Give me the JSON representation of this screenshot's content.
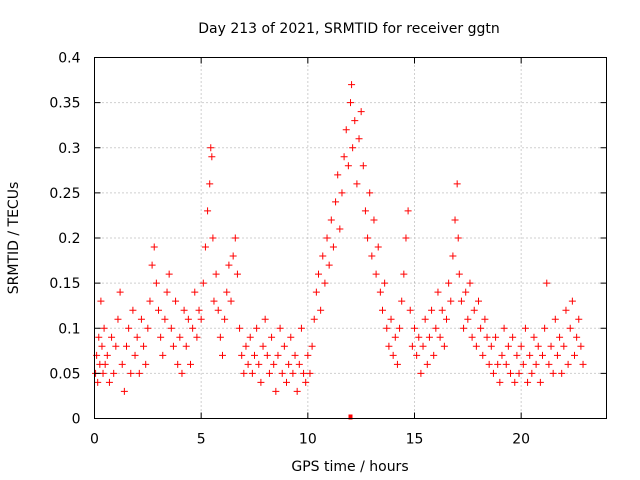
{
  "chart_data": {
    "type": "scatter",
    "title": "Day 213 of 2021, SRMTID for receiver ggtn",
    "xlabel": "GPS time / hours",
    "ylabel": "SRMTID / TECUs",
    "xlim": [
      0,
      24
    ],
    "ylim": [
      0,
      0.4
    ],
    "xticks": [
      0,
      5,
      10,
      15,
      20
    ],
    "xtick_labels": [
      "0",
      "5",
      "10",
      "15",
      "20"
    ],
    "yticks": [
      0,
      0.05,
      0.1,
      0.15,
      0.2,
      0.25,
      0.3,
      0.35,
      0.4
    ],
    "ytick_labels": [
      "0",
      "0.05",
      "0.1",
      "0.15",
      "0.2",
      "0.25",
      "0.3",
      "0.35",
      "0.4"
    ],
    "grid": true,
    "marker": "+",
    "color": "#ff0000",
    "series": [
      {
        "name": "SRMTID",
        "points": [
          [
            0.05,
            0.05
          ],
          [
            0.1,
            0.07
          ],
          [
            0.15,
            0.04
          ],
          [
            0.2,
            0.09
          ],
          [
            0.25,
            0.06
          ],
          [
            0.3,
            0.13
          ],
          [
            0.35,
            0.08
          ],
          [
            0.4,
            0.05
          ],
          [
            0.45,
            0.1
          ],
          [
            0.5,
            0.06
          ],
          [
            0.6,
            0.07
          ],
          [
            0.7,
            0.04
          ],
          [
            0.8,
            0.09
          ],
          [
            0.9,
            0.05
          ],
          [
            1.0,
            0.08
          ],
          [
            1.1,
            0.11
          ],
          [
            1.2,
            0.14
          ],
          [
            1.3,
            0.06
          ],
          [
            1.4,
            0.03
          ],
          [
            1.5,
            0.08
          ],
          [
            1.6,
            0.1
          ],
          [
            1.7,
            0.05
          ],
          [
            1.8,
            0.12
          ],
          [
            1.9,
            0.07
          ],
          [
            2.0,
            0.09
          ],
          [
            2.1,
            0.05
          ],
          [
            2.2,
            0.11
          ],
          [
            2.3,
            0.08
          ],
          [
            2.4,
            0.06
          ],
          [
            2.5,
            0.1
          ],
          [
            2.6,
            0.13
          ],
          [
            2.7,
            0.17
          ],
          [
            2.8,
            0.19
          ],
          [
            2.9,
            0.15
          ],
          [
            3.0,
            0.12
          ],
          [
            3.1,
            0.09
          ],
          [
            3.2,
            0.07
          ],
          [
            3.3,
            0.11
          ],
          [
            3.4,
            0.14
          ],
          [
            3.5,
            0.16
          ],
          [
            3.6,
            0.1
          ],
          [
            3.7,
            0.08
          ],
          [
            3.8,
            0.13
          ],
          [
            3.9,
            0.06
          ],
          [
            4.0,
            0.09
          ],
          [
            4.1,
            0.05
          ],
          [
            4.2,
            0.12
          ],
          [
            4.3,
            0.08
          ],
          [
            4.4,
            0.11
          ],
          [
            4.5,
            0.06
          ],
          [
            4.6,
            0.1
          ],
          [
            4.7,
            0.14
          ],
          [
            4.8,
            0.09
          ],
          [
            4.9,
            0.12
          ],
          [
            5.0,
            0.11
          ],
          [
            5.1,
            0.15
          ],
          [
            5.2,
            0.19
          ],
          [
            5.3,
            0.23
          ],
          [
            5.4,
            0.26
          ],
          [
            5.45,
            0.3
          ],
          [
            5.5,
            0.29
          ],
          [
            5.55,
            0.2
          ],
          [
            5.6,
            0.13
          ],
          [
            5.7,
            0.16
          ],
          [
            5.8,
            0.12
          ],
          [
            5.9,
            0.09
          ],
          [
            6.0,
            0.07
          ],
          [
            6.1,
            0.11
          ],
          [
            6.2,
            0.14
          ],
          [
            6.3,
            0.17
          ],
          [
            6.4,
            0.13
          ],
          [
            6.5,
            0.18
          ],
          [
            6.6,
            0.2
          ],
          [
            6.7,
            0.16
          ],
          [
            6.8,
            0.1
          ],
          [
            6.9,
            0.07
          ],
          [
            7.0,
            0.05
          ],
          [
            7.1,
            0.08
          ],
          [
            7.2,
            0.06
          ],
          [
            7.3,
            0.09
          ],
          [
            7.4,
            0.05
          ],
          [
            7.5,
            0.07
          ],
          [
            7.6,
            0.1
          ],
          [
            7.7,
            0.06
          ],
          [
            7.8,
            0.04
          ],
          [
            7.9,
            0.08
          ],
          [
            8.0,
            0.11
          ],
          [
            8.1,
            0.07
          ],
          [
            8.2,
            0.05
          ],
          [
            8.3,
            0.09
          ],
          [
            8.4,
            0.06
          ],
          [
            8.5,
            0.03
          ],
          [
            8.6,
            0.07
          ],
          [
            8.7,
            0.1
          ],
          [
            8.8,
            0.05
          ],
          [
            8.9,
            0.08
          ],
          [
            9.0,
            0.04
          ],
          [
            9.1,
            0.06
          ],
          [
            9.2,
            0.09
          ],
          [
            9.3,
            0.05
          ],
          [
            9.4,
            0.07
          ],
          [
            9.5,
            0.03
          ],
          [
            9.6,
            0.06
          ],
          [
            9.7,
            0.1
          ],
          [
            9.8,
            0.05
          ],
          [
            9.9,
            0.04
          ],
          [
            10.0,
            0.07
          ],
          [
            10.1,
            0.05
          ],
          [
            10.2,
            0.08
          ],
          [
            10.3,
            0.11
          ],
          [
            10.4,
            0.14
          ],
          [
            10.5,
            0.16
          ],
          [
            10.6,
            0.12
          ],
          [
            10.7,
            0.18
          ],
          [
            10.8,
            0.15
          ],
          [
            10.9,
            0.2
          ],
          [
            11.0,
            0.17
          ],
          [
            11.1,
            0.22
          ],
          [
            11.2,
            0.19
          ],
          [
            11.3,
            0.24
          ],
          [
            11.4,
            0.27
          ],
          [
            11.5,
            0.21
          ],
          [
            11.6,
            0.25
          ],
          [
            11.7,
            0.29
          ],
          [
            11.8,
            0.32
          ],
          [
            11.9,
            0.28
          ],
          [
            12.0,
            0.35
          ],
          [
            12.05,
            0.37
          ],
          [
            12.1,
            0.3
          ],
          [
            12.2,
            0.33
          ],
          [
            12.3,
            0.26
          ],
          [
            12.4,
            0.31
          ],
          [
            12.5,
            0.34
          ],
          [
            12.6,
            0.28
          ],
          [
            12.7,
            0.23
          ],
          [
            12.8,
            0.2
          ],
          [
            12.9,
            0.25
          ],
          [
            13.0,
            0.18
          ],
          [
            13.1,
            0.22
          ],
          [
            13.2,
            0.16
          ],
          [
            13.3,
            0.19
          ],
          [
            13.4,
            0.14
          ],
          [
            13.5,
            0.12
          ],
          [
            13.6,
            0.15
          ],
          [
            13.7,
            0.1
          ],
          [
            13.8,
            0.08
          ],
          [
            13.9,
            0.11
          ],
          [
            14.0,
            0.07
          ],
          [
            14.1,
            0.09
          ],
          [
            14.2,
            0.06
          ],
          [
            14.3,
            0.1
          ],
          [
            14.4,
            0.13
          ],
          [
            14.5,
            0.16
          ],
          [
            14.6,
            0.2
          ],
          [
            14.7,
            0.23
          ],
          [
            14.8,
            0.12
          ],
          [
            14.9,
            0.08
          ],
          [
            15.0,
            0.1
          ],
          [
            15.1,
            0.07
          ],
          [
            15.2,
            0.09
          ],
          [
            15.3,
            0.05
          ],
          [
            15.4,
            0.08
          ],
          [
            15.5,
            0.11
          ],
          [
            15.6,
            0.06
          ],
          [
            15.7,
            0.09
          ],
          [
            15.8,
            0.12
          ],
          [
            15.9,
            0.07
          ],
          [
            16.0,
            0.1
          ],
          [
            16.1,
            0.14
          ],
          [
            16.2,
            0.09
          ],
          [
            16.3,
            0.12
          ],
          [
            16.4,
            0.08
          ],
          [
            16.5,
            0.11
          ],
          [
            16.6,
            0.15
          ],
          [
            16.7,
            0.13
          ],
          [
            16.8,
            0.18
          ],
          [
            16.9,
            0.22
          ],
          [
            17.0,
            0.26
          ],
          [
            17.05,
            0.2
          ],
          [
            17.1,
            0.16
          ],
          [
            17.2,
            0.13
          ],
          [
            17.3,
            0.1
          ],
          [
            17.4,
            0.14
          ],
          [
            17.5,
            0.11
          ],
          [
            17.6,
            0.15
          ],
          [
            17.7,
            0.09
          ],
          [
            17.8,
            0.12
          ],
          [
            17.9,
            0.08
          ],
          [
            18.0,
            0.13
          ],
          [
            18.1,
            0.1
          ],
          [
            18.2,
            0.07
          ],
          [
            18.3,
            0.11
          ],
          [
            18.4,
            0.09
          ],
          [
            18.5,
            0.06
          ],
          [
            18.6,
            0.08
          ],
          [
            18.7,
            0.05
          ],
          [
            18.8,
            0.09
          ],
          [
            18.9,
            0.06
          ],
          [
            19.0,
            0.04
          ],
          [
            19.1,
            0.07
          ],
          [
            19.2,
            0.1
          ],
          [
            19.3,
            0.06
          ],
          [
            19.4,
            0.08
          ],
          [
            19.5,
            0.05
          ],
          [
            19.6,
            0.09
          ],
          [
            19.7,
            0.04
          ],
          [
            19.8,
            0.07
          ],
          [
            19.9,
            0.05
          ],
          [
            20.0,
            0.08
          ],
          [
            20.1,
            0.06
          ],
          [
            20.2,
            0.1
          ],
          [
            20.3,
            0.04
          ],
          [
            20.4,
            0.07
          ],
          [
            20.5,
            0.05
          ],
          [
            20.6,
            0.09
          ],
          [
            20.7,
            0.06
          ],
          [
            20.8,
            0.08
          ],
          [
            20.9,
            0.04
          ],
          [
            21.0,
            0.07
          ],
          [
            21.1,
            0.1
          ],
          [
            21.2,
            0.15
          ],
          [
            21.3,
            0.06
          ],
          [
            21.4,
            0.08
          ],
          [
            21.5,
            0.05
          ],
          [
            21.6,
            0.11
          ],
          [
            21.7,
            0.07
          ],
          [
            21.8,
            0.09
          ],
          [
            21.9,
            0.05
          ],
          [
            22.0,
            0.08
          ],
          [
            22.1,
            0.12
          ],
          [
            22.2,
            0.06
          ],
          [
            22.3,
            0.1
          ],
          [
            22.4,
            0.13
          ],
          [
            22.5,
            0.07
          ],
          [
            22.6,
            0.09
          ],
          [
            22.7,
            0.11
          ],
          [
            22.8,
            0.08
          ],
          [
            22.9,
            0.06
          ]
        ]
      }
    ],
    "gap_marker_x": 12.0
  }
}
